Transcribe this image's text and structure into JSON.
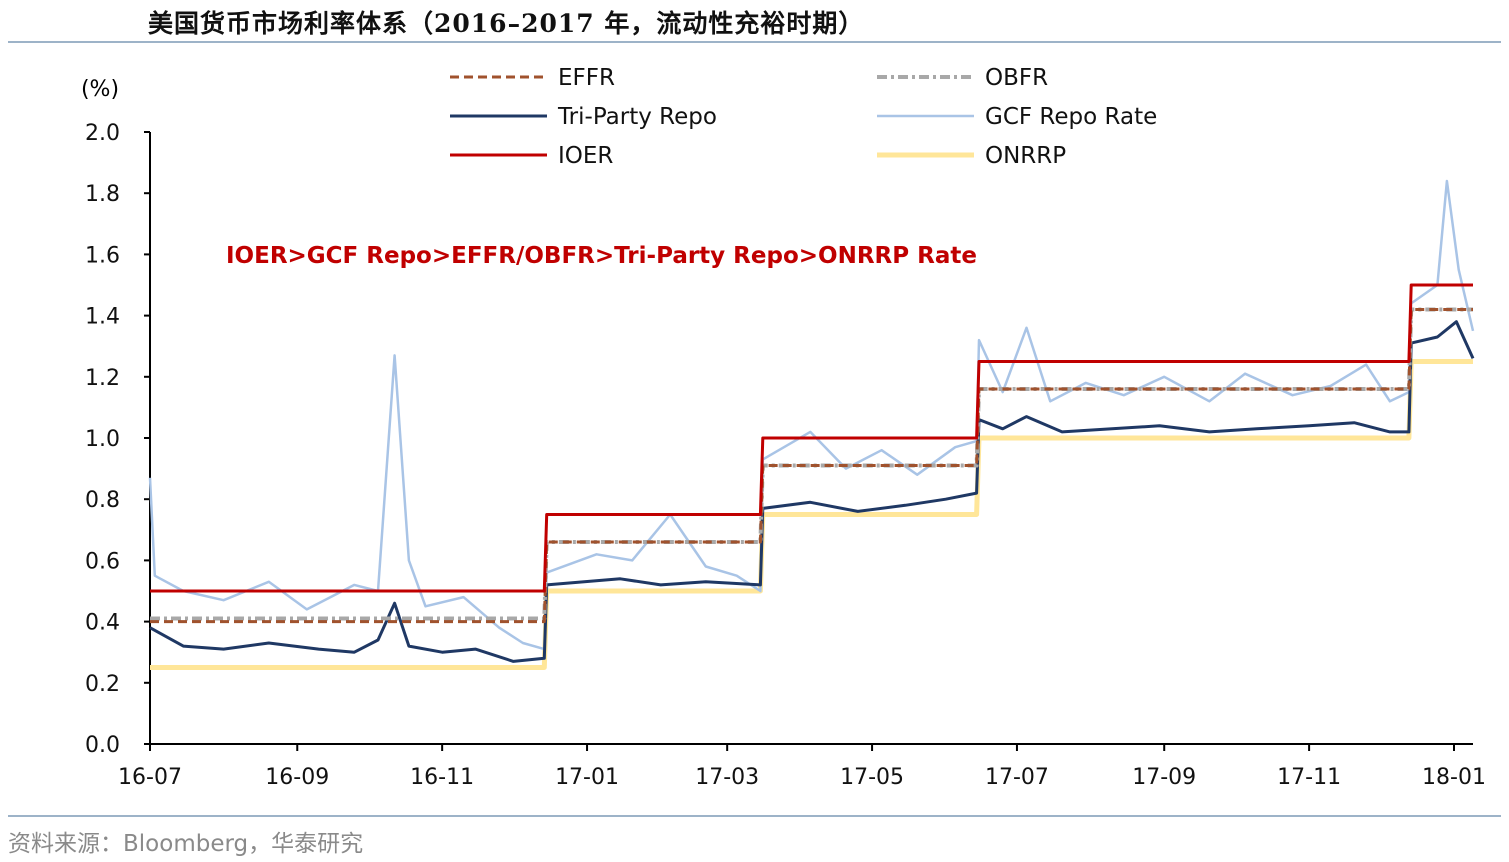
{
  "header": {
    "title": "美国货币市场利率体系（2016–2017 年，流动性充裕时期）"
  },
  "footer": {
    "source": "资料来源：Bloomberg，华泰研究"
  },
  "chart_data": {
    "type": "line",
    "unit_label": "(%)",
    "annotation": "IOER>GCF Repo>EFFR/OBFR>Tri-Party Repo>ONRRP Rate",
    "annotation_color": "#c00000",
    "x_ticks": [
      "16-07",
      "16-09",
      "16-11",
      "17-01",
      "17-03",
      "17-05",
      "17-07",
      "17-09",
      "17-11",
      "18-01"
    ],
    "xlim": [
      "2016-07-01",
      "2018-01-09"
    ],
    "ylim": [
      0,
      2.0
    ],
    "y_ticks": [
      "0.0",
      "0.2",
      "0.4",
      "0.6",
      "0.8",
      "1.0",
      "1.2",
      "1.4",
      "1.6",
      "1.8",
      "2.0"
    ],
    "legend_position": "top",
    "grid": false,
    "series": [
      {
        "name": "EFFR",
        "style": "dashed",
        "color": "#a0522d",
        "points": [
          [
            "2016-07-01",
            0.4
          ],
          [
            "2016-12-14",
            0.4
          ],
          [
            "2016-12-15",
            0.66
          ],
          [
            "2017-03-15",
            0.66
          ],
          [
            "2017-03-16",
            0.91
          ],
          [
            "2017-06-14",
            0.91
          ],
          [
            "2017-06-15",
            1.16
          ],
          [
            "2017-12-13",
            1.16
          ],
          [
            "2017-12-14",
            1.42
          ],
          [
            "2018-01-09",
            1.42
          ]
        ]
      },
      {
        "name": "OBFR",
        "style": "dotted-dashed",
        "color": "#a8a8a8",
        "points": [
          [
            "2016-07-01",
            0.41
          ],
          [
            "2016-12-14",
            0.41
          ],
          [
            "2016-12-15",
            0.66
          ],
          [
            "2017-03-15",
            0.66
          ],
          [
            "2017-03-16",
            0.91
          ],
          [
            "2017-06-14",
            0.91
          ],
          [
            "2017-06-15",
            1.16
          ],
          [
            "2017-12-13",
            1.16
          ],
          [
            "2017-12-14",
            1.42
          ],
          [
            "2018-01-09",
            1.42
          ]
        ]
      },
      {
        "name": "Tri-Party Repo",
        "style": "solid",
        "color": "#1f3864",
        "points": [
          [
            "2016-07-01",
            0.38
          ],
          [
            "2016-07-15",
            0.32
          ],
          [
            "2016-08-01",
            0.31
          ],
          [
            "2016-08-20",
            0.33
          ],
          [
            "2016-09-10",
            0.31
          ],
          [
            "2016-09-25",
            0.3
          ],
          [
            "2016-10-05",
            0.34
          ],
          [
            "2016-10-12",
            0.46
          ],
          [
            "2016-10-18",
            0.32
          ],
          [
            "2016-11-01",
            0.3
          ],
          [
            "2016-11-15",
            0.31
          ],
          [
            "2016-12-01",
            0.27
          ],
          [
            "2016-12-14",
            0.28
          ],
          [
            "2016-12-15",
            0.52
          ],
          [
            "2017-01-15",
            0.54
          ],
          [
            "2017-02-01",
            0.52
          ],
          [
            "2017-02-20",
            0.53
          ],
          [
            "2017-03-15",
            0.52
          ],
          [
            "2017-03-16",
            0.77
          ],
          [
            "2017-04-05",
            0.79
          ],
          [
            "2017-04-25",
            0.76
          ],
          [
            "2017-05-15",
            0.78
          ],
          [
            "2017-06-01",
            0.8
          ],
          [
            "2017-06-14",
            0.82
          ],
          [
            "2017-06-15",
            1.06
          ],
          [
            "2017-06-25",
            1.03
          ],
          [
            "2017-07-05",
            1.07
          ],
          [
            "2017-07-20",
            1.02
          ],
          [
            "2017-08-10",
            1.03
          ],
          [
            "2017-08-30",
            1.04
          ],
          [
            "2017-09-20",
            1.02
          ],
          [
            "2017-10-10",
            1.03
          ],
          [
            "2017-11-01",
            1.04
          ],
          [
            "2017-11-20",
            1.05
          ],
          [
            "2017-12-05",
            1.02
          ],
          [
            "2017-12-13",
            1.02
          ],
          [
            "2017-12-14",
            1.31
          ],
          [
            "2017-12-25",
            1.33
          ],
          [
            "2018-01-02",
            1.38
          ],
          [
            "2018-01-09",
            1.26
          ]
        ]
      },
      {
        "name": "GCF Repo Rate",
        "style": "solid",
        "color": "#a9c4e6",
        "points": [
          [
            "2016-07-01",
            0.87
          ],
          [
            "2016-07-03",
            0.55
          ],
          [
            "2016-07-15",
            0.5
          ],
          [
            "2016-08-01",
            0.47
          ],
          [
            "2016-08-20",
            0.53
          ],
          [
            "2016-09-05",
            0.44
          ],
          [
            "2016-09-25",
            0.52
          ],
          [
            "2016-10-05",
            0.5
          ],
          [
            "2016-10-12",
            1.27
          ],
          [
            "2016-10-18",
            0.6
          ],
          [
            "2016-10-25",
            0.45
          ],
          [
            "2016-11-10",
            0.48
          ],
          [
            "2016-11-25",
            0.38
          ],
          [
            "2016-12-05",
            0.33
          ],
          [
            "2016-12-14",
            0.31
          ],
          [
            "2016-12-15",
            0.56
          ],
          [
            "2017-01-05",
            0.62
          ],
          [
            "2017-01-20",
            0.6
          ],
          [
            "2017-02-05",
            0.75
          ],
          [
            "2017-02-20",
            0.58
          ],
          [
            "2017-03-05",
            0.55
          ],
          [
            "2017-03-15",
            0.5
          ],
          [
            "2017-03-16",
            0.93
          ],
          [
            "2017-04-05",
            1.02
          ],
          [
            "2017-04-20",
            0.9
          ],
          [
            "2017-05-05",
            0.96
          ],
          [
            "2017-05-20",
            0.88
          ],
          [
            "2017-06-05",
            0.97
          ],
          [
            "2017-06-14",
            0.99
          ],
          [
            "2017-06-15",
            1.32
          ],
          [
            "2017-06-25",
            1.15
          ],
          [
            "2017-07-05",
            1.36
          ],
          [
            "2017-07-15",
            1.12
          ],
          [
            "2017-07-30",
            1.18
          ],
          [
            "2017-08-15",
            1.14
          ],
          [
            "2017-09-01",
            1.2
          ],
          [
            "2017-09-20",
            1.12
          ],
          [
            "2017-10-05",
            1.21
          ],
          [
            "2017-10-25",
            1.14
          ],
          [
            "2017-11-10",
            1.17
          ],
          [
            "2017-11-25",
            1.24
          ],
          [
            "2017-12-05",
            1.12
          ],
          [
            "2017-12-13",
            1.15
          ],
          [
            "2017-12-14",
            1.44
          ],
          [
            "2017-12-25",
            1.5
          ],
          [
            "2017-12-29",
            1.84
          ],
          [
            "2018-01-03",
            1.55
          ],
          [
            "2018-01-09",
            1.35
          ]
        ]
      },
      {
        "name": "IOER",
        "style": "solid",
        "color": "#c00000",
        "points": [
          [
            "2016-07-01",
            0.5
          ],
          [
            "2016-12-14",
            0.5
          ],
          [
            "2016-12-15",
            0.75
          ],
          [
            "2017-03-15",
            0.75
          ],
          [
            "2017-03-16",
            1.0
          ],
          [
            "2017-06-14",
            1.0
          ],
          [
            "2017-06-15",
            1.25
          ],
          [
            "2017-12-13",
            1.25
          ],
          [
            "2017-12-14",
            1.5
          ],
          [
            "2018-01-09",
            1.5
          ]
        ]
      },
      {
        "name": "ONRRP",
        "style": "solid",
        "color": "#ffe699",
        "points": [
          [
            "2016-07-01",
            0.25
          ],
          [
            "2016-12-14",
            0.25
          ],
          [
            "2016-12-15",
            0.5
          ],
          [
            "2017-03-15",
            0.5
          ],
          [
            "2017-03-16",
            0.75
          ],
          [
            "2017-06-14",
            0.75
          ],
          [
            "2017-06-15",
            1.0
          ],
          [
            "2017-12-13",
            1.0
          ],
          [
            "2017-12-14",
            1.25
          ],
          [
            "2018-01-09",
            1.25
          ]
        ]
      }
    ]
  }
}
